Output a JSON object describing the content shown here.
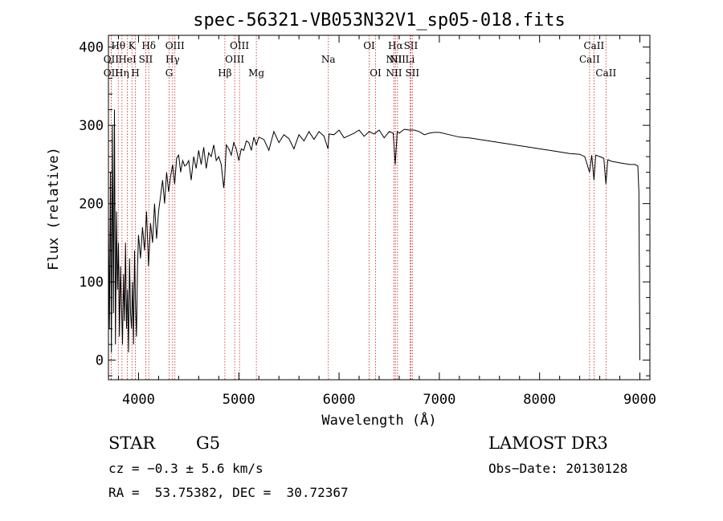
{
  "chart_data": {
    "type": "line",
    "title": "spec-56321-VB053N32V1_sp05-018.fits",
    "xlabel": "Wavelength (Å)",
    "ylabel": "Flux (relative)",
    "xlim": [
      3700,
      9100
    ],
    "ylim": [
      -25,
      415
    ],
    "xticks": [
      4000,
      5000,
      6000,
      7000,
      8000,
      9000
    ],
    "yticks": [
      0,
      100,
      200,
      300,
      400
    ],
    "grid": false,
    "series": [
      {
        "name": "flux",
        "x": [
          3700,
          3710,
          3720,
          3730,
          3740,
          3750,
          3760,
          3770,
          3780,
          3790,
          3800,
          3810,
          3820,
          3830,
          3840,
          3850,
          3860,
          3870,
          3880,
          3890,
          3900,
          3910,
          3920,
          3930,
          3940,
          3950,
          3960,
          3970,
          3980,
          3990,
          4000,
          4020,
          4040,
          4060,
          4080,
          4100,
          4120,
          4140,
          4160,
          4180,
          4200,
          4220,
          4240,
          4260,
          4280,
          4300,
          4320,
          4340,
          4360,
          4380,
          4400,
          4420,
          4440,
          4460,
          4480,
          4500,
          4525,
          4550,
          4575,
          4600,
          4625,
          4650,
          4675,
          4700,
          4725,
          4750,
          4775,
          4800,
          4825,
          4850,
          4860,
          4875,
          4900,
          4925,
          4950,
          4975,
          5000,
          5025,
          5050,
          5075,
          5100,
          5125,
          5150,
          5175,
          5200,
          5250,
          5300,
          5350,
          5400,
          5450,
          5500,
          5550,
          5600,
          5650,
          5700,
          5750,
          5800,
          5850,
          5890,
          5900,
          5950,
          6000,
          6050,
          6100,
          6150,
          6200,
          6250,
          6300,
          6350,
          6400,
          6450,
          6500,
          6540,
          6560,
          6580,
          6600,
          6650,
          6700,
          6750,
          6800,
          6850,
          6900,
          6950,
          7000,
          7100,
          7200,
          7300,
          7400,
          7500,
          7600,
          7700,
          7800,
          7900,
          8000,
          8100,
          8200,
          8300,
          8400,
          8450,
          8498,
          8520,
          8542,
          8560,
          8600,
          8640,
          8662,
          8680,
          8720,
          8760,
          8800,
          8850,
          8900,
          8950,
          8980,
          8990,
          9000
        ],
        "values": [
          180,
          40,
          240,
          10,
          300,
          60,
          320,
          20,
          190,
          90,
          150,
          30,
          120,
          70,
          20,
          110,
          50,
          150,
          40,
          90,
          10,
          130,
          60,
          40,
          100,
          20,
          140,
          70,
          30,
          120,
          160,
          130,
          170,
          140,
          190,
          120,
          175,
          150,
          200,
          155,
          190,
          210,
          230,
          200,
          240,
          215,
          235,
          250,
          225,
          258,
          262,
          240,
          255,
          248,
          250,
          255,
          230,
          260,
          245,
          268,
          250,
          272,
          245,
          265,
          260,
          275,
          255,
          260,
          250,
          220,
          235,
          275,
          270,
          262,
          278,
          270,
          255,
          270,
          268,
          280,
          278,
          268,
          285,
          275,
          285,
          282,
          268,
          292,
          278,
          288,
          283,
          270,
          288,
          280,
          292,
          282,
          292,
          286,
          270,
          289,
          288,
          294,
          284,
          287,
          290,
          294,
          286,
          292,
          289,
          294,
          284,
          292,
          290,
          250,
          292,
          290,
          295,
          294,
          294,
          292,
          288,
          290,
          291,
          291,
          288,
          285,
          284,
          282,
          280,
          278,
          276,
          274,
          272,
          270,
          268,
          266,
          264,
          263,
          260,
          240,
          262,
          230,
          262,
          260,
          258,
          225,
          256,
          254,
          253,
          252,
          251,
          250,
          250,
          248,
          215,
          0
        ]
      }
    ],
    "lines": [
      {
        "label": "OII",
        "x": 3727,
        "row": 2
      },
      {
        "label": "OII",
        "x": 3727,
        "row": 3
      },
      {
        "label": "Hθ",
        "x": 3798,
        "row": 1
      },
      {
        "label": "Hη",
        "x": 3835,
        "row": 3
      },
      {
        "label": "HeI",
        "x": 3889,
        "row": 2
      },
      {
        "label": "K",
        "x": 3934,
        "row": 1
      },
      {
        "label": "H",
        "x": 3968,
        "row": 3
      },
      {
        "label": "SII",
        "x": 4072,
        "row": 2
      },
      {
        "label": "Hδ",
        "x": 4102,
        "row": 1
      },
      {
        "label": "G",
        "x": 4305,
        "row": 3
      },
      {
        "label": "Hγ",
        "x": 4340,
        "row": 2
      },
      {
        "label": "OIII",
        "x": 4363,
        "row": 1
      },
      {
        "label": "Hβ",
        "x": 4861,
        "row": 3
      },
      {
        "label": "OIII",
        "x": 4959,
        "row": 2
      },
      {
        "label": "OIII",
        "x": 5007,
        "row": 1
      },
      {
        "label": "Mg",
        "x": 5175,
        "row": 3
      },
      {
        "label": "Na",
        "x": 5893,
        "row": 2
      },
      {
        "label": "OI",
        "x": 6300,
        "row": 1
      },
      {
        "label": "OI",
        "x": 6364,
        "row": 3
      },
      {
        "label": "NII",
        "x": 6548,
        "row": 2
      },
      {
        "label": "NII",
        "x": 6548,
        "row": 3
      },
      {
        "label": "Hα",
        "x": 6563,
        "row": 1
      },
      {
        "label": "NII",
        "x": 6583,
        "row": 2
      },
      {
        "label": "SII",
        "x": 6716,
        "row": 1
      },
      {
        "label": "Li",
        "x": 6708,
        "row": 2
      },
      {
        "label": "SII",
        "x": 6731,
        "row": 3
      },
      {
        "label": "CaII",
        "x": 8498,
        "row": 2
      },
      {
        "label": "CaII",
        "x": 8542,
        "row": 1
      },
      {
        "label": "CaII",
        "x": 8662,
        "row": 3
      }
    ]
  },
  "info": {
    "class": "STAR",
    "subclass": "G5",
    "survey": "LAMOST DR3",
    "cz": "cz = −0.3 ± 5.6 km/s",
    "obsdate": "Obs−Date: 20130128",
    "radec": "RA =  53.75382, DEC =  30.72367"
  }
}
